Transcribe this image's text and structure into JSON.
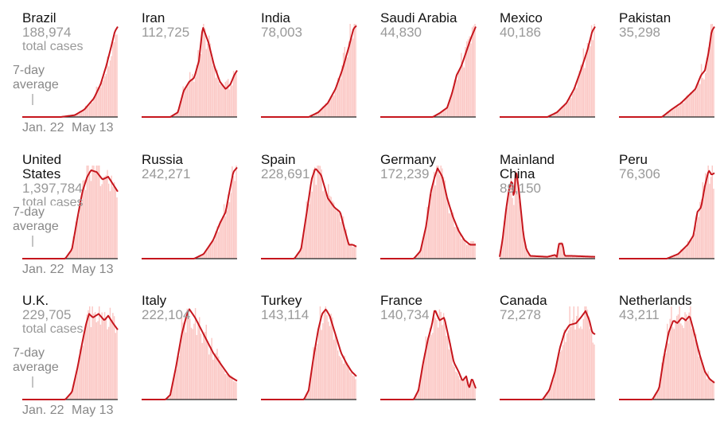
{
  "legend": {
    "avg_line1": "7-day",
    "avg_line2": "average",
    "total_cases_suffix": "total cases",
    "x_start": "Jan. 22",
    "x_end": "May 13"
  },
  "colors": {
    "line": "#c6161d",
    "bars": "#fbc8c5",
    "baseline": "#222222",
    "country": "#121212",
    "cases": "#999999"
  },
  "chart_data": [
    {
      "type": "area",
      "country_lines": [
        "Brazil"
      ],
      "total_cases": "188,974",
      "show_total_label": true,
      "show_axis_labels": true,
      "x": [
        "Jan. 22",
        "May 13"
      ],
      "shape": [
        [
          0,
          0
        ],
        [
          0.4,
          0
        ],
        [
          0.55,
          0.02
        ],
        [
          0.65,
          0.08
        ],
        [
          0.75,
          0.2
        ],
        [
          0.82,
          0.35
        ],
        [
          0.88,
          0.55
        ],
        [
          0.93,
          0.75
        ],
        [
          0.97,
          0.92
        ],
        [
          1,
          0.97
        ]
      ]
    },
    {
      "type": "area",
      "country_lines": [
        "Iran"
      ],
      "total_cases": "112,725",
      "show_total_label": false,
      "show_axis_labels": false,
      "x": [
        "Jan. 22",
        "May 13"
      ],
      "shape": [
        [
          0,
          0
        ],
        [
          0.3,
          0
        ],
        [
          0.38,
          0.05
        ],
        [
          0.44,
          0.28
        ],
        [
          0.5,
          0.38
        ],
        [
          0.55,
          0.42
        ],
        [
          0.6,
          0.6
        ],
        [
          0.64,
          0.97
        ],
        [
          0.7,
          0.8
        ],
        [
          0.76,
          0.55
        ],
        [
          0.82,
          0.38
        ],
        [
          0.88,
          0.3
        ],
        [
          0.93,
          0.35
        ],
        [
          0.97,
          0.45
        ],
        [
          1,
          0.5
        ]
      ]
    },
    {
      "type": "area",
      "country_lines": [
        "India"
      ],
      "total_cases": "78,003",
      "show_total_label": false,
      "show_axis_labels": false,
      "x": [
        "Jan. 22",
        "May 13"
      ],
      "shape": [
        [
          0,
          0
        ],
        [
          0.5,
          0
        ],
        [
          0.6,
          0.05
        ],
        [
          0.7,
          0.15
        ],
        [
          0.78,
          0.3
        ],
        [
          0.85,
          0.5
        ],
        [
          0.92,
          0.75
        ],
        [
          0.97,
          0.95
        ],
        [
          1,
          0.98
        ]
      ]
    },
    {
      "type": "area",
      "country_lines": [
        "Saudi Arabia"
      ],
      "total_cases": "44,830",
      "show_total_label": false,
      "show_axis_labels": false,
      "x": [
        "Jan. 22",
        "May 13"
      ],
      "shape": [
        [
          0,
          0
        ],
        [
          0.55,
          0
        ],
        [
          0.62,
          0.04
        ],
        [
          0.7,
          0.1
        ],
        [
          0.75,
          0.25
        ],
        [
          0.8,
          0.45
        ],
        [
          0.85,
          0.55
        ],
        [
          0.9,
          0.7
        ],
        [
          0.95,
          0.85
        ],
        [
          1,
          0.97
        ]
      ]
    },
    {
      "type": "area",
      "country_lines": [
        "Mexico"
      ],
      "total_cases": "40,186",
      "show_total_label": false,
      "show_axis_labels": false,
      "x": [
        "Jan. 22",
        "May 13"
      ],
      "shape": [
        [
          0,
          0
        ],
        [
          0.5,
          0
        ],
        [
          0.6,
          0.05
        ],
        [
          0.7,
          0.15
        ],
        [
          0.78,
          0.3
        ],
        [
          0.85,
          0.5
        ],
        [
          0.92,
          0.72
        ],
        [
          0.97,
          0.92
        ],
        [
          1,
          0.97
        ]
      ]
    },
    {
      "type": "area",
      "country_lines": [
        "Pakistan"
      ],
      "total_cases": "35,298",
      "show_total_label": false,
      "show_axis_labels": false,
      "x": [
        "Jan. 22",
        "May 13"
      ],
      "shape": [
        [
          0,
          0
        ],
        [
          0.45,
          0
        ],
        [
          0.55,
          0.08
        ],
        [
          0.65,
          0.15
        ],
        [
          0.72,
          0.22
        ],
        [
          0.8,
          0.3
        ],
        [
          0.86,
          0.45
        ],
        [
          0.9,
          0.5
        ],
        [
          0.94,
          0.7
        ],
        [
          0.97,
          0.92
        ],
        [
          1,
          0.97
        ]
      ]
    },
    {
      "type": "area",
      "country_lines": [
        "United",
        "States"
      ],
      "total_cases": "1,397,784",
      "show_total_label": true,
      "show_axis_labels": true,
      "x": [
        "Jan. 22",
        "May 13"
      ],
      "shape": [
        [
          0,
          0
        ],
        [
          0.45,
          0
        ],
        [
          0.52,
          0.1
        ],
        [
          0.58,
          0.45
        ],
        [
          0.63,
          0.72
        ],
        [
          0.68,
          0.88
        ],
        [
          0.72,
          0.95
        ],
        [
          0.78,
          0.93
        ],
        [
          0.84,
          0.85
        ],
        [
          0.9,
          0.88
        ],
        [
          0.95,
          0.8
        ],
        [
          1,
          0.72
        ]
      ]
    },
    {
      "type": "area",
      "country_lines": [
        "Russia"
      ],
      "total_cases": "242,271",
      "show_total_label": false,
      "show_axis_labels": false,
      "x": [
        "Jan. 22",
        "May 13"
      ],
      "shape": [
        [
          0,
          0
        ],
        [
          0.55,
          0
        ],
        [
          0.65,
          0.05
        ],
        [
          0.75,
          0.2
        ],
        [
          0.82,
          0.38
        ],
        [
          0.88,
          0.5
        ],
        [
          0.92,
          0.72
        ],
        [
          0.96,
          0.93
        ],
        [
          1,
          0.98
        ]
      ]
    },
    {
      "type": "area",
      "country_lines": [
        "Spain"
      ],
      "total_cases": "228,691",
      "show_total_label": false,
      "show_axis_labels": false,
      "x": [
        "Jan. 22",
        "May 13"
      ],
      "shape": [
        [
          0,
          0
        ],
        [
          0.35,
          0
        ],
        [
          0.42,
          0.1
        ],
        [
          0.48,
          0.5
        ],
        [
          0.53,
          0.85
        ],
        [
          0.57,
          0.97
        ],
        [
          0.63,
          0.9
        ],
        [
          0.7,
          0.65
        ],
        [
          0.77,
          0.55
        ],
        [
          0.83,
          0.5
        ],
        [
          0.88,
          0.3
        ],
        [
          0.92,
          0.15
        ],
        [
          0.96,
          0.15
        ],
        [
          1,
          0.13
        ]
      ]
    },
    {
      "type": "area",
      "country_lines": [
        "Germany"
      ],
      "total_cases": "172,239",
      "show_total_label": false,
      "show_axis_labels": false,
      "x": [
        "Jan. 22",
        "May 13"
      ],
      "shape": [
        [
          0,
          0
        ],
        [
          0.35,
          0
        ],
        [
          0.42,
          0.08
        ],
        [
          0.48,
          0.35
        ],
        [
          0.53,
          0.72
        ],
        [
          0.57,
          0.88
        ],
        [
          0.6,
          0.97
        ],
        [
          0.65,
          0.88
        ],
        [
          0.7,
          0.65
        ],
        [
          0.76,
          0.45
        ],
        [
          0.82,
          0.3
        ],
        [
          0.88,
          0.2
        ],
        [
          0.94,
          0.15
        ],
        [
          1,
          0.15
        ]
      ]
    },
    {
      "type": "area",
      "country_lines": [
        "Mainland",
        "China"
      ],
      "total_cases": "89,150",
      "show_total_label": false,
      "show_axis_labels": false,
      "x": [
        "Jan. 22",
        "May 13"
      ],
      "shape": [
        [
          0,
          0.02
        ],
        [
          0.03,
          0.2
        ],
        [
          0.07,
          0.55
        ],
        [
          0.1,
          0.75
        ],
        [
          0.13,
          0.85
        ],
        [
          0.15,
          0.62
        ],
        [
          0.17,
          0.97
        ],
        [
          0.2,
          0.75
        ],
        [
          0.22,
          0.55
        ],
        [
          0.25,
          0.25
        ],
        [
          0.28,
          0.1
        ],
        [
          0.32,
          0.03
        ],
        [
          0.5,
          0.02
        ],
        [
          0.58,
          0.04
        ],
        [
          0.6,
          0.02
        ],
        [
          0.62,
          0.16
        ],
        [
          0.66,
          0.16
        ],
        [
          0.68,
          0.03
        ],
        [
          0.75,
          0.03
        ],
        [
          1,
          0.02
        ]
      ]
    },
    {
      "type": "area",
      "country_lines": [
        "Peru"
      ],
      "total_cases": "76,306",
      "show_total_label": false,
      "show_axis_labels": false,
      "x": [
        "Jan. 22",
        "May 13"
      ],
      "shape": [
        [
          0,
          0
        ],
        [
          0.5,
          0
        ],
        [
          0.62,
          0.05
        ],
        [
          0.72,
          0.15
        ],
        [
          0.78,
          0.25
        ],
        [
          0.82,
          0.5
        ],
        [
          0.86,
          0.55
        ],
        [
          0.9,
          0.78
        ],
        [
          0.94,
          0.95
        ],
        [
          0.97,
          0.9
        ],
        [
          1,
          0.92
        ]
      ]
    },
    {
      "type": "area",
      "country_lines": [
        "U.K."
      ],
      "total_cases": "229,705",
      "show_total_label": true,
      "show_axis_labels": true,
      "x": [
        "Jan. 22",
        "May 13"
      ],
      "shape": [
        [
          0,
          0
        ],
        [
          0.45,
          0
        ],
        [
          0.52,
          0.08
        ],
        [
          0.58,
          0.35
        ],
        [
          0.63,
          0.62
        ],
        [
          0.67,
          0.82
        ],
        [
          0.7,
          0.92
        ],
        [
          0.74,
          0.88
        ],
        [
          0.8,
          0.92
        ],
        [
          0.86,
          0.85
        ],
        [
          0.9,
          0.9
        ],
        [
          0.95,
          0.82
        ],
        [
          1,
          0.75
        ]
      ]
    },
    {
      "type": "area",
      "country_lines": [
        "Italy"
      ],
      "total_cases": "222,104",
      "show_total_label": false,
      "show_axis_labels": false,
      "x": [
        "Jan. 22",
        "May 13"
      ],
      "shape": [
        [
          0,
          0
        ],
        [
          0.25,
          0
        ],
        [
          0.3,
          0.05
        ],
        [
          0.36,
          0.35
        ],
        [
          0.42,
          0.7
        ],
        [
          0.47,
          0.9
        ],
        [
          0.5,
          0.97
        ],
        [
          0.56,
          0.88
        ],
        [
          0.65,
          0.7
        ],
        [
          0.75,
          0.5
        ],
        [
          0.85,
          0.35
        ],
        [
          0.92,
          0.25
        ],
        [
          1,
          0.2
        ]
      ]
    },
    {
      "type": "area",
      "country_lines": [
        "Turkey"
      ],
      "total_cases": "143,114",
      "show_total_label": false,
      "show_axis_labels": false,
      "x": [
        "Jan. 22",
        "May 13"
      ],
      "shape": [
        [
          0,
          0
        ],
        [
          0.45,
          0
        ],
        [
          0.5,
          0.1
        ],
        [
          0.55,
          0.45
        ],
        [
          0.6,
          0.75
        ],
        [
          0.64,
          0.92
        ],
        [
          0.68,
          0.97
        ],
        [
          0.72,
          0.9
        ],
        [
          0.78,
          0.7
        ],
        [
          0.84,
          0.5
        ],
        [
          0.9,
          0.38
        ],
        [
          0.95,
          0.3
        ],
        [
          1,
          0.25
        ]
      ]
    },
    {
      "type": "area",
      "country_lines": [
        "France"
      ],
      "total_cases": "140,734",
      "show_total_label": false,
      "show_axis_labels": false,
      "x": [
        "Jan. 22",
        "May 13"
      ],
      "shape": [
        [
          0,
          0
        ],
        [
          0.35,
          0
        ],
        [
          0.4,
          0.1
        ],
        [
          0.45,
          0.4
        ],
        [
          0.5,
          0.65
        ],
        [
          0.54,
          0.8
        ],
        [
          0.57,
          0.97
        ],
        [
          0.62,
          0.85
        ],
        [
          0.67,
          0.88
        ],
        [
          0.72,
          0.65
        ],
        [
          0.77,
          0.4
        ],
        [
          0.82,
          0.3
        ],
        [
          0.86,
          0.2
        ],
        [
          0.9,
          0.25
        ],
        [
          0.93,
          0.12
        ],
        [
          0.96,
          0.23
        ],
        [
          1,
          0.12
        ]
      ]
    },
    {
      "type": "area",
      "country_lines": [
        "Canada"
      ],
      "total_cases": "72,278",
      "show_total_label": false,
      "show_axis_labels": false,
      "x": [
        "Jan. 22",
        "May 13"
      ],
      "shape": [
        [
          0,
          0
        ],
        [
          0.45,
          0
        ],
        [
          0.52,
          0.1
        ],
        [
          0.58,
          0.3
        ],
        [
          0.63,
          0.55
        ],
        [
          0.68,
          0.72
        ],
        [
          0.73,
          0.8
        ],
        [
          0.8,
          0.82
        ],
        [
          0.85,
          0.88
        ],
        [
          0.9,
          0.95
        ],
        [
          0.94,
          0.85
        ],
        [
          0.97,
          0.72
        ],
        [
          1,
          0.7
        ]
      ]
    },
    {
      "type": "area",
      "country_lines": [
        "Netherlands"
      ],
      "total_cases": "43,211",
      "show_total_label": false,
      "show_axis_labels": false,
      "x": [
        "Jan. 22",
        "May 13"
      ],
      "shape": [
        [
          0,
          0
        ],
        [
          0.35,
          0
        ],
        [
          0.42,
          0.12
        ],
        [
          0.47,
          0.45
        ],
        [
          0.52,
          0.72
        ],
        [
          0.57,
          0.85
        ],
        [
          0.61,
          0.82
        ],
        [
          0.66,
          0.88
        ],
        [
          0.7,
          0.85
        ],
        [
          0.74,
          0.9
        ],
        [
          0.78,
          0.75
        ],
        [
          0.84,
          0.5
        ],
        [
          0.9,
          0.3
        ],
        [
          0.95,
          0.22
        ],
        [
          1,
          0.18
        ]
      ]
    }
  ]
}
